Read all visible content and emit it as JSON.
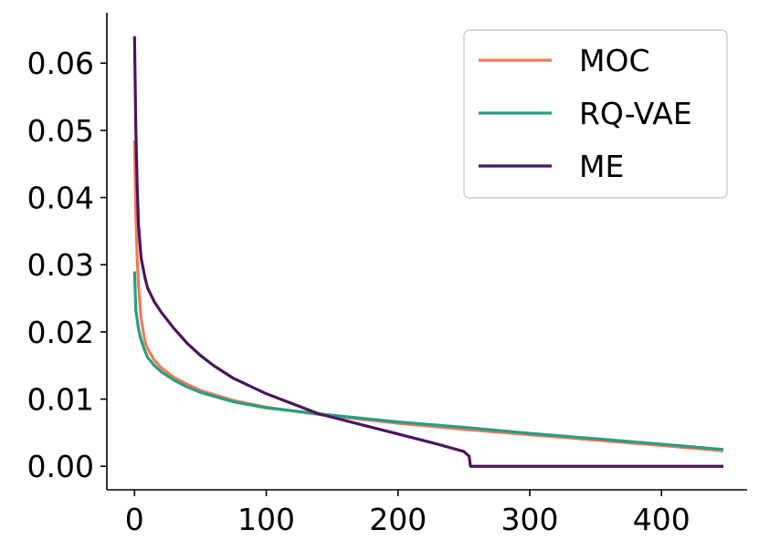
{
  "chart_data": {
    "type": "line",
    "xlim": [
      -21,
      465
    ],
    "ylim": [
      -0.0035,
      0.0675
    ],
    "x_ticks": [
      0,
      100,
      200,
      300,
      400
    ],
    "x_tick_labels": [
      "0",
      "100",
      "200",
      "300",
      "400"
    ],
    "y_ticks": [
      0.0,
      0.01,
      0.02,
      0.03,
      0.04,
      0.05,
      0.06
    ],
    "y_tick_labels": [
      "0.00",
      "0.01",
      "0.02",
      "0.03",
      "0.04",
      "0.05",
      "0.06"
    ],
    "grid": false,
    "legend_position": "top-right",
    "series": [
      {
        "name": "MOC",
        "color": "#f07a5a",
        "points": [
          [
            0,
            0.0485
          ],
          [
            1,
            0.038
          ],
          [
            2,
            0.031
          ],
          [
            3,
            0.027
          ],
          [
            5,
            0.022
          ],
          [
            8,
            0.0185
          ],
          [
            10,
            0.0175
          ],
          [
            15,
            0.0158
          ],
          [
            20,
            0.0147
          ],
          [
            30,
            0.0132
          ],
          [
            40,
            0.0122
          ],
          [
            50,
            0.0113
          ],
          [
            75,
            0.0098
          ],
          [
            100,
            0.0088
          ],
          [
            140,
            0.0077
          ],
          [
            200,
            0.0064
          ],
          [
            250,
            0.0055
          ],
          [
            300,
            0.0047
          ],
          [
            350,
            0.0039
          ],
          [
            400,
            0.0031
          ],
          [
            447,
            0.0023
          ]
        ]
      },
      {
        "name": "RQ-VAE",
        "color": "#2a9d82",
        "points": [
          [
            0,
            0.029
          ],
          [
            1,
            0.0232
          ],
          [
            3,
            0.0205
          ],
          [
            5,
            0.0188
          ],
          [
            8,
            0.0171
          ],
          [
            10,
            0.0162
          ],
          [
            15,
            0.015
          ],
          [
            20,
            0.0141
          ],
          [
            30,
            0.0128
          ],
          [
            40,
            0.0118
          ],
          [
            50,
            0.011
          ],
          [
            75,
            0.0096
          ],
          [
            100,
            0.0087
          ],
          [
            140,
            0.0078
          ],
          [
            200,
            0.0066
          ],
          [
            250,
            0.0058
          ],
          [
            300,
            0.0049
          ],
          [
            350,
            0.0041
          ],
          [
            400,
            0.0033
          ],
          [
            447,
            0.0025
          ]
        ]
      },
      {
        "name": "ME",
        "color": "#4b145f",
        "points": [
          [
            0,
            0.064
          ],
          [
            1,
            0.05
          ],
          [
            2,
            0.042
          ],
          [
            3,
            0.036
          ],
          [
            5,
            0.031
          ],
          [
            8,
            0.028
          ],
          [
            10,
            0.0265
          ],
          [
            15,
            0.0245
          ],
          [
            20,
            0.023
          ],
          [
            30,
            0.0205
          ],
          [
            40,
            0.0183
          ],
          [
            50,
            0.0165
          ],
          [
            60,
            0.015
          ],
          [
            75,
            0.0131
          ],
          [
            100,
            0.0108
          ],
          [
            140,
            0.0078
          ],
          [
            170,
            0.0063
          ],
          [
            200,
            0.0048
          ],
          [
            230,
            0.0033
          ],
          [
            250,
            0.0022
          ],
          [
            254,
            0.0015
          ],
          [
            255,
            0.0
          ],
          [
            300,
            0.0
          ],
          [
            350,
            0.0
          ],
          [
            400,
            0.0
          ],
          [
            447,
            0.0
          ]
        ]
      }
    ]
  }
}
